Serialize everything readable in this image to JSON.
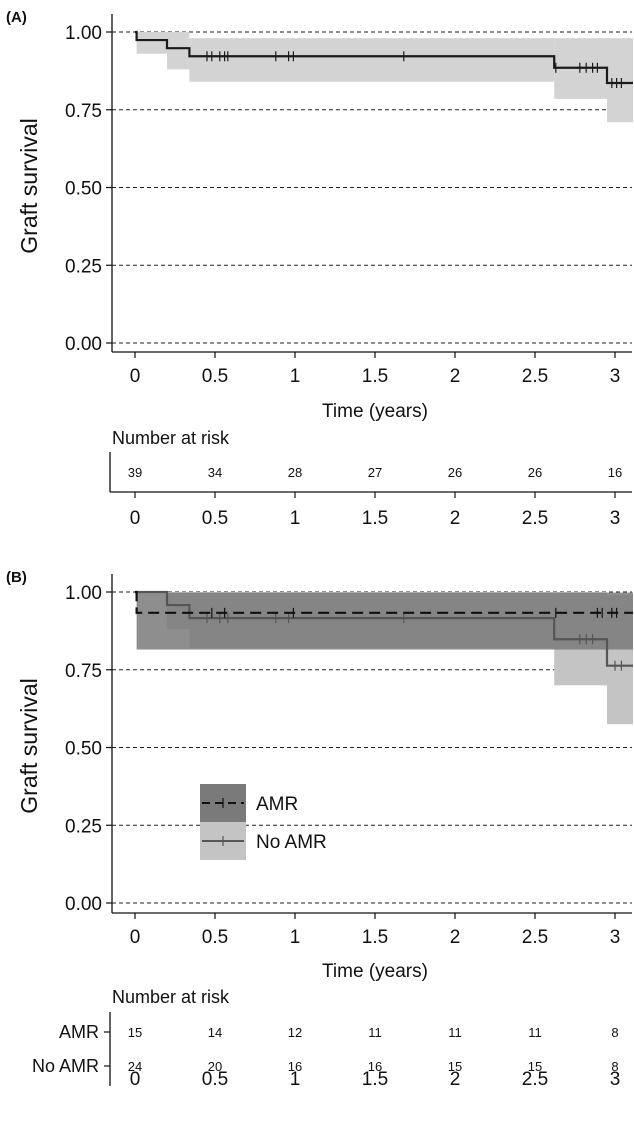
{
  "chart_data": [
    {
      "panel": "(A)",
      "type": "line",
      "ylabel": "Graft survival",
      "xlabel": "Time (years)",
      "xlim": [
        -0.15,
        3.08
      ],
      "ylim": [
        -0.02,
        1.06
      ],
      "x_ticks": [
        0,
        0.5,
        1,
        1.5,
        2,
        2.5,
        3
      ],
      "x_tick_labels": [
        "0",
        "0.5",
        "1",
        "1.5",
        "2",
        "2.5",
        "3"
      ],
      "y_ticks": [
        0,
        0.25,
        0.5,
        0.75,
        1
      ],
      "y_tick_labels": [
        "0.00",
        "0.25",
        "0.50",
        "0.75",
        "1.00"
      ],
      "grid": "horizontal dashed",
      "series": [
        {
          "color": "#1a1a1a",
          "ci_color": "#d3d3d3",
          "steps": [
            {
              "x": 0,
              "y": 1.0
            },
            {
              "x": 0.01,
              "y": 0.974
            },
            {
              "x": 0.2,
              "y": 0.948
            },
            {
              "x": 0.34,
              "y": 0.922
            },
            {
              "x": 2.62,
              "y": 0.885
            },
            {
              "x": 2.95,
              "y": 0.836
            }
          ],
          "ci": [
            {
              "x": 0,
              "upper": 1.0,
              "lower": 1.0
            },
            {
              "x": 0.01,
              "upper": 1.0,
              "lower": 0.93
            },
            {
              "x": 0.2,
              "upper": 1.0,
              "lower": 0.88
            },
            {
              "x": 0.34,
              "upper": 0.98,
              "lower": 0.84
            },
            {
              "x": 2.62,
              "upper": 0.98,
              "lower": 0.785
            },
            {
              "x": 2.95,
              "upper": 0.98,
              "lower": 0.71
            }
          ],
          "censor": [
            0.45,
            0.48,
            0.53,
            0.56,
            0.58,
            0.88,
            0.96,
            0.99,
            1.68,
            2.63,
            2.78,
            2.82,
            2.86,
            2.89,
            2.98,
            3.01,
            3.04
          ]
        }
      ],
      "risk_table": {
        "title": "Number at risk",
        "times": [
          "0",
          "0.5",
          "1",
          "1.5",
          "2",
          "2.5",
          "3"
        ],
        "rows": [
          {
            "label": "",
            "counts": [
              "39",
              "34",
              "28",
              "27",
              "26",
              "26",
              "16"
            ]
          }
        ]
      }
    },
    {
      "panel": "(B)",
      "type": "line",
      "ylabel": "Graft survival",
      "xlabel": "Time (years)",
      "xlim": [
        -0.15,
        3.08
      ],
      "ylim": [
        -0.02,
        1.06
      ],
      "x_ticks": [
        0,
        0.5,
        1,
        1.5,
        2,
        2.5,
        3
      ],
      "x_tick_labels": [
        "0",
        "0.5",
        "1",
        "1.5",
        "2",
        "2.5",
        "3"
      ],
      "y_ticks": [
        0,
        0.25,
        0.5,
        0.75,
        1
      ],
      "y_tick_labels": [
        "0.00",
        "0.25",
        "0.50",
        "0.75",
        "1.00"
      ],
      "grid": "horizontal dashed",
      "legend": {
        "placement": "center-left",
        "items": [
          "AMR",
          "No AMR"
        ]
      },
      "series": [
        {
          "name": "No AMR",
          "color": "#555555",
          "ci_color": "#c4c4c4",
          "dashed": false,
          "steps": [
            {
              "x": 0,
              "y": 1.0
            },
            {
              "x": 0.2,
              "y": 0.958
            },
            {
              "x": 0.34,
              "y": 0.916
            },
            {
              "x": 2.62,
              "y": 0.848
            },
            {
              "x": 2.95,
              "y": 0.763
            }
          ],
          "ci": [
            {
              "x": 0,
              "upper": 1.0,
              "lower": 1.0
            },
            {
              "x": 0.2,
              "upper": 1.0,
              "lower": 0.88
            },
            {
              "x": 0.34,
              "upper": 1.0,
              "lower": 0.82
            },
            {
              "x": 2.62,
              "upper": 1.0,
              "lower": 0.7
            },
            {
              "x": 2.95,
              "upper": 0.99,
              "lower": 0.575
            }
          ],
          "censor": [
            0.45,
            0.53,
            0.58,
            0.88,
            0.96,
            1.68,
            2.78,
            2.82,
            2.86,
            3.0,
            3.04
          ]
        },
        {
          "name": "AMR",
          "color": "#111111",
          "ci_color": "#7a7a7a",
          "dashed": true,
          "steps": [
            {
              "x": 0,
              "y": 1.0
            },
            {
              "x": 0.01,
              "y": 0.933
            }
          ],
          "ci": [
            {
              "x": 0,
              "upper": 1.0,
              "lower": 1.0
            },
            {
              "x": 0.01,
              "upper": 0.998,
              "lower": 0.815
            }
          ],
          "censor": [
            0.48,
            0.56,
            0.99,
            2.63,
            2.89,
            2.92,
            2.98,
            3.01
          ]
        }
      ],
      "risk_table": {
        "title": "Number at risk",
        "times": [
          "0",
          "0.5",
          "1",
          "1.5",
          "2",
          "2.5",
          "3"
        ],
        "rows": [
          {
            "label": "AMR",
            "counts": [
              "15",
              "14",
              "12",
              "11",
              "11",
              "11",
              "8"
            ]
          },
          {
            "label": "No AMR",
            "counts": [
              "24",
              "20",
              "16",
              "16",
              "15",
              "15",
              "8"
            ]
          }
        ]
      }
    }
  ]
}
